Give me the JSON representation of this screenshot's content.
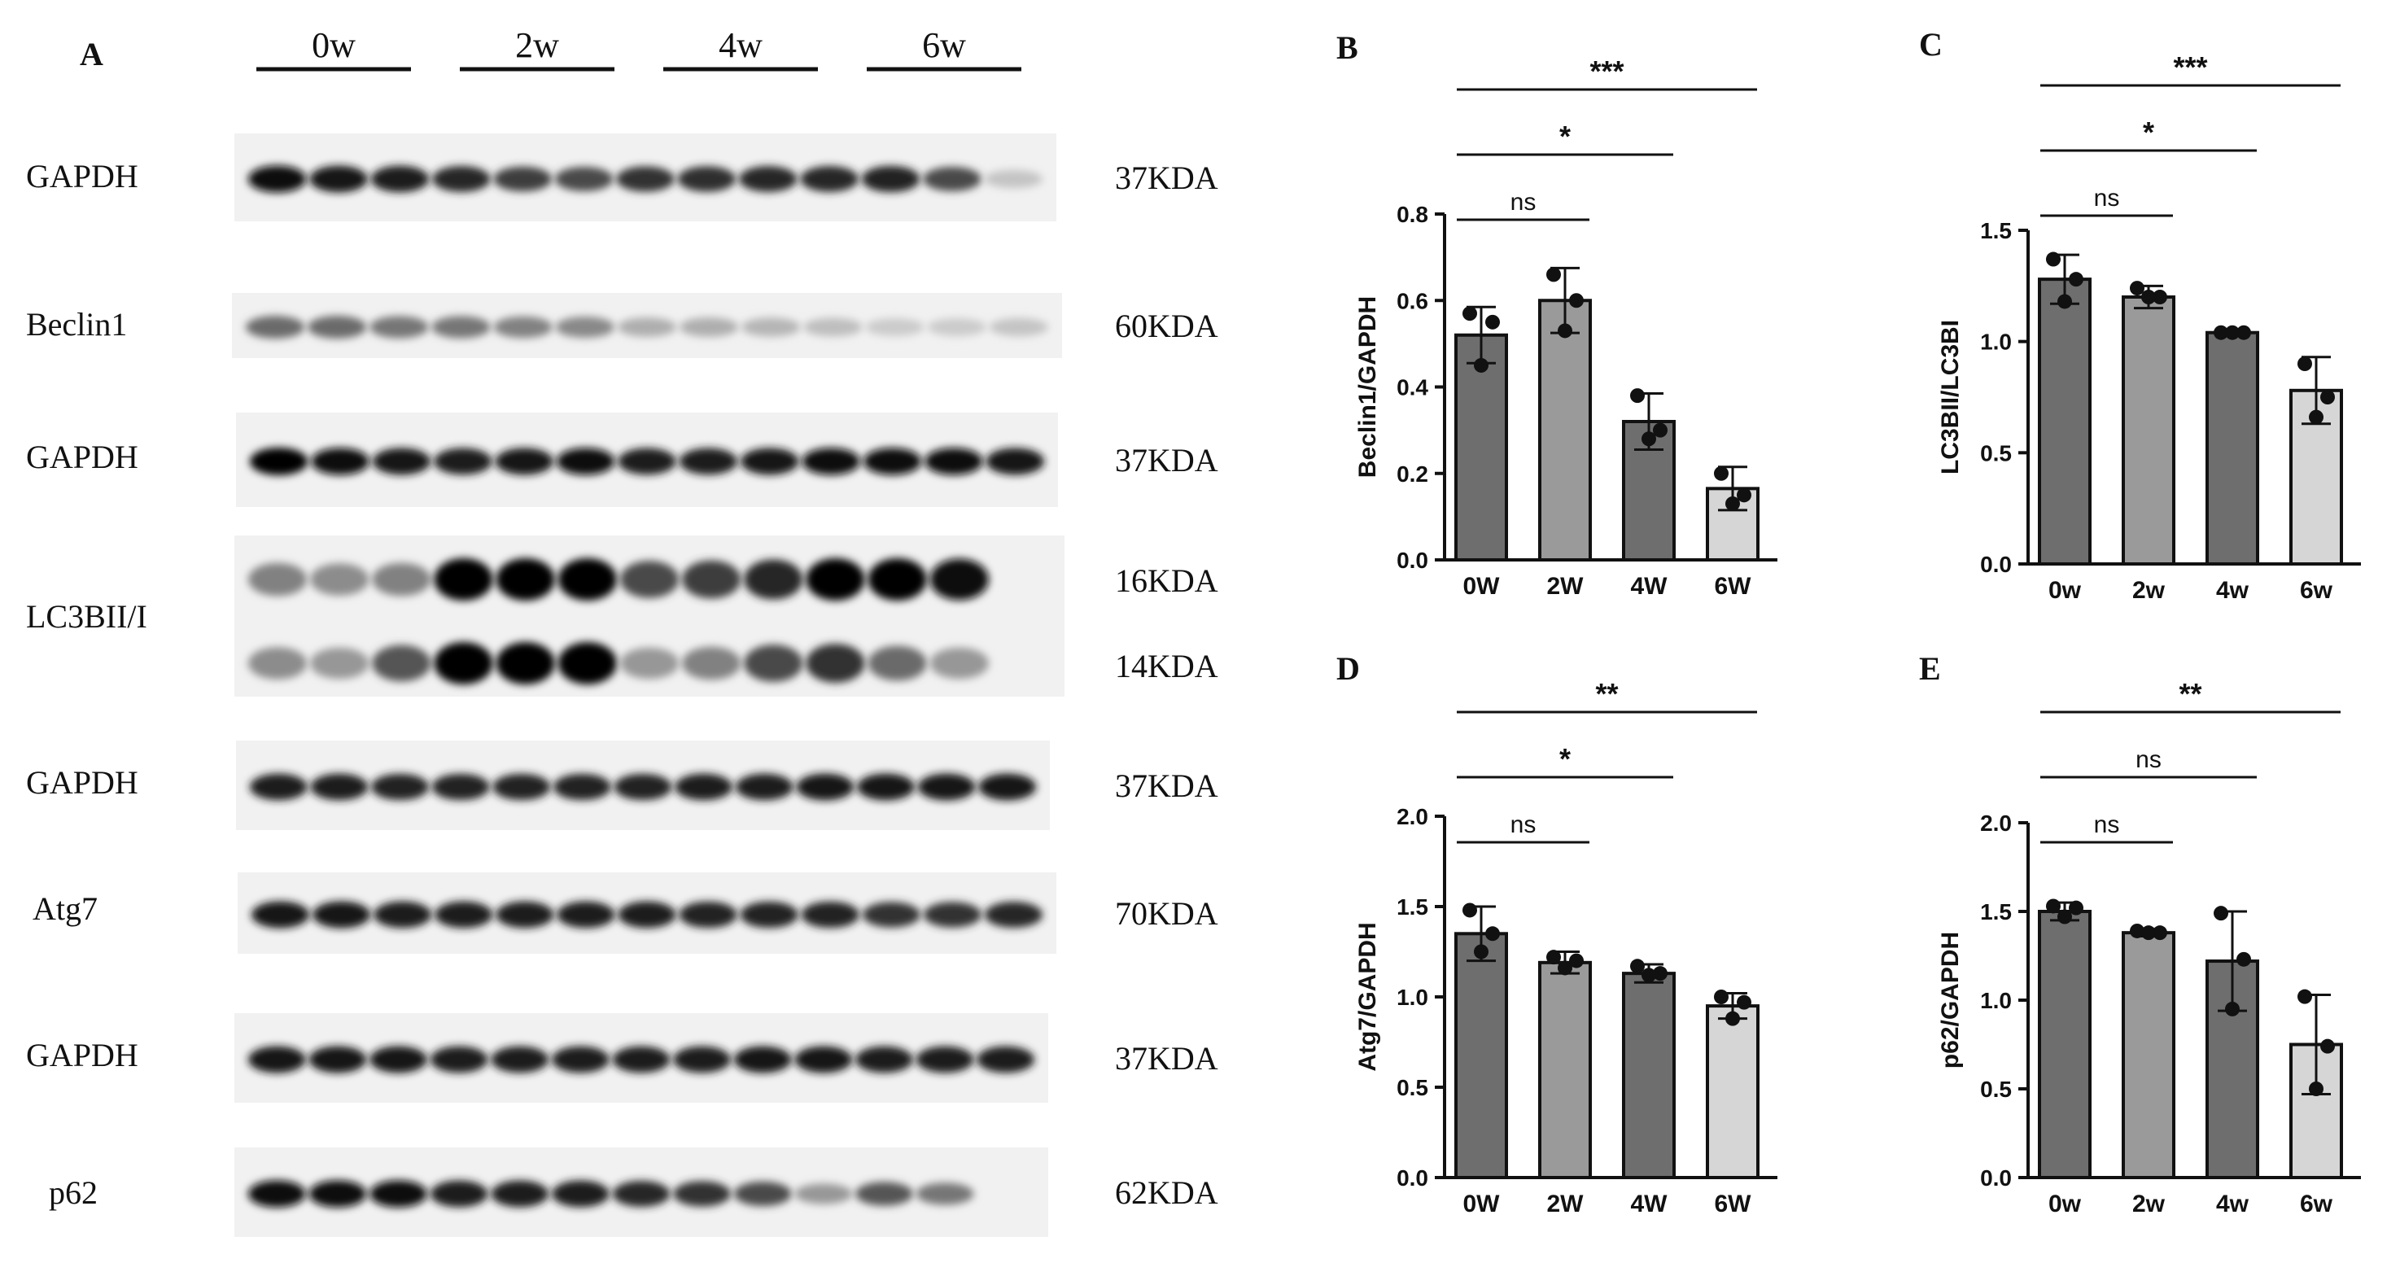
{
  "figure": {
    "panel_letters": [
      "A",
      "B",
      "C",
      "D",
      "E"
    ]
  },
  "western_blot": {
    "panel_letter": "A",
    "timepoints": [
      "0w",
      "2w",
      "4w",
      "6w"
    ],
    "lanes_per_timepoint": 3,
    "rows": [
      {
        "label": "GAPDH",
        "sizes": [
          "37KDA"
        ],
        "band_intensity": [
          0.95,
          0.93,
          0.9,
          0.85,
          0.75,
          0.7,
          0.8,
          0.82,
          0.85,
          0.85,
          0.88,
          0.7,
          0.15
        ],
        "band_count": 1
      },
      {
        "label": "Beclin1",
        "sizes": [
          "60KDA"
        ],
        "band_intensity": [
          0.55,
          0.55,
          0.5,
          0.5,
          0.45,
          0.42,
          0.25,
          0.25,
          0.22,
          0.18,
          0.12,
          0.12,
          0.15
        ],
        "band_count": 1
      },
      {
        "label": "GAPDH",
        "sizes": [
          "37KDA"
        ],
        "band_intensity": [
          1.0,
          0.95,
          0.92,
          0.9,
          0.92,
          0.95,
          0.9,
          0.9,
          0.92,
          0.95,
          0.95,
          0.95,
          0.93
        ],
        "band_count": 1
      },
      {
        "label": "LC3BII/I",
        "sizes": [
          "16KDA",
          "14KDA"
        ],
        "band_intensity": [
          0.45,
          0.4,
          0.45,
          1.0,
          1.0,
          1.0,
          0.7,
          0.75,
          0.85,
          1.0,
          1.0,
          0.95,
          0.0
        ],
        "band2_intensity": [
          0.4,
          0.35,
          0.65,
          1.0,
          1.0,
          1.0,
          0.35,
          0.45,
          0.7,
          0.8,
          0.55,
          0.35,
          0.0
        ],
        "band_count": 2
      },
      {
        "label": "GAPDH",
        "sizes": [
          "37KDA"
        ],
        "band_intensity": [
          0.9,
          0.9,
          0.88,
          0.88,
          0.88,
          0.88,
          0.88,
          0.9,
          0.9,
          0.92,
          0.92,
          0.92,
          0.92
        ],
        "band_count": 1
      },
      {
        "label": "Atg7",
        "sizes": [
          "70KDA"
        ],
        "band_intensity": [
          0.92,
          0.92,
          0.9,
          0.9,
          0.9,
          0.9,
          0.9,
          0.88,
          0.88,
          0.88,
          0.8,
          0.8,
          0.85
        ],
        "band_count": 1
      },
      {
        "label": "GAPDH",
        "sizes": [
          "37KDA"
        ],
        "band_intensity": [
          0.92,
          0.92,
          0.92,
          0.9,
          0.9,
          0.9,
          0.9,
          0.9,
          0.92,
          0.92,
          0.9,
          0.9,
          0.9
        ],
        "band_count": 1
      },
      {
        "label": "p62",
        "sizes": [
          "62KDA"
        ],
        "band_intensity": [
          0.95,
          0.95,
          0.95,
          0.9,
          0.9,
          0.9,
          0.85,
          0.8,
          0.7,
          0.35,
          0.65,
          0.5,
          0.0
        ],
        "band_count": 1
      }
    ]
  },
  "chart_data": [
    {
      "panel": "B",
      "type": "bar",
      "categories": [
        "0W",
        "2W",
        "4W",
        "6W"
      ],
      "ylabel": "Beclin1/GAPDH",
      "xlabel": "",
      "ylim": [
        0,
        0.8
      ],
      "yticks": [
        "0.0",
        "0.2",
        "0.4",
        "0.6",
        "0.8"
      ],
      "values": [
        0.52,
        0.6,
        0.32,
        0.165
      ],
      "sd": [
        0.065,
        0.075,
        0.065,
        0.05
      ],
      "points": [
        [
          0.57,
          0.55,
          0.45
        ],
        [
          0.66,
          0.6,
          0.53
        ],
        [
          0.38,
          0.3,
          0.28
        ],
        [
          0.2,
          0.15,
          0.13
        ]
      ],
      "bar_colors": [
        "#6e6e6e",
        "#9a9a9a",
        "#6e6e6e",
        "#d6d6d6"
      ],
      "significance": [
        {
          "from": 0,
          "to": 1,
          "label": "ns"
        },
        {
          "from": 0,
          "to": 2,
          "label": "*"
        },
        {
          "from": 0,
          "to": 3,
          "label": "***"
        }
      ]
    },
    {
      "panel": "C",
      "type": "bar",
      "categories": [
        "0w",
        "2w",
        "4w",
        "6w"
      ],
      "ylabel": "LC3BII/LC3BI",
      "xlabel": "",
      "ylim": [
        0,
        1.5
      ],
      "yticks": [
        "0.0",
        "0.5",
        "1.0",
        "1.5"
      ],
      "values": [
        1.28,
        1.2,
        1.04,
        0.78
      ],
      "sd": [
        0.11,
        0.05,
        0.01,
        0.15
      ],
      "points": [
        [
          1.37,
          1.28,
          1.18
        ],
        [
          1.24,
          1.2,
          1.2
        ],
        [
          1.04,
          1.04,
          1.04
        ],
        [
          0.9,
          0.75,
          0.66
        ]
      ],
      "bar_colors": [
        "#6e6e6e",
        "#9a9a9a",
        "#6e6e6e",
        "#d6d6d6"
      ],
      "significance": [
        {
          "from": 0,
          "to": 1,
          "label": "ns"
        },
        {
          "from": 0,
          "to": 2,
          "label": "*"
        },
        {
          "from": 0,
          "to": 3,
          "label": "***"
        }
      ]
    },
    {
      "panel": "D",
      "type": "bar",
      "categories": [
        "0W",
        "2W",
        "4W",
        "6W"
      ],
      "ylabel": "Atg7/GAPDH",
      "xlabel": "",
      "ylim": [
        0,
        2.0
      ],
      "yticks": [
        "0.0",
        "0.5",
        "1.0",
        "1.5",
        "2.0"
      ],
      "values": [
        1.35,
        1.19,
        1.13,
        0.95
      ],
      "sd": [
        0.15,
        0.06,
        0.05,
        0.07
      ],
      "points": [
        [
          1.48,
          1.35,
          1.25
        ],
        [
          1.22,
          1.2,
          1.16
        ],
        [
          1.17,
          1.13,
          1.12
        ],
        [
          1.0,
          0.97,
          0.88
        ]
      ],
      "bar_colors": [
        "#6e6e6e",
        "#9a9a9a",
        "#6e6e6e",
        "#d6d6d6"
      ],
      "significance": [
        {
          "from": 0,
          "to": 1,
          "label": "ns"
        },
        {
          "from": 0,
          "to": 2,
          "label": "*"
        },
        {
          "from": 0,
          "to": 3,
          "label": "**"
        }
      ]
    },
    {
      "panel": "E",
      "type": "bar",
      "categories": [
        "0w",
        "2w",
        "4w",
        "6w"
      ],
      "ylabel": "p62/GAPDH",
      "xlabel": "",
      "ylim": [
        0,
        2.0
      ],
      "yticks": [
        "0.0",
        "0.5",
        "1.0",
        "1.5",
        "2.0"
      ],
      "values": [
        1.5,
        1.38,
        1.22,
        0.75
      ],
      "sd": [
        0.05,
        0.02,
        0.28,
        0.28
      ],
      "points": [
        [
          1.53,
          1.52,
          1.47
        ],
        [
          1.39,
          1.38,
          1.38
        ],
        [
          1.49,
          1.23,
          0.95
        ],
        [
          1.02,
          0.74,
          0.5
        ]
      ],
      "bar_colors": [
        "#6e6e6e",
        "#9a9a9a",
        "#6e6e6e",
        "#d6d6d6"
      ],
      "significance": [
        {
          "from": 0,
          "to": 1,
          "label": "ns"
        },
        {
          "from": 0,
          "to": 2,
          "label": "ns"
        },
        {
          "from": 0,
          "to": 3,
          "label": "**"
        }
      ]
    }
  ]
}
